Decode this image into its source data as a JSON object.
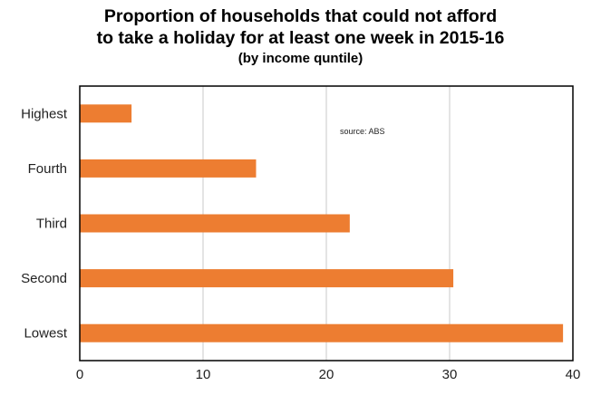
{
  "chart_data": {
    "type": "bar",
    "orientation": "horizontal",
    "title_line1": "Proportion of households that could not afford",
    "title_line2": "to take a holiday for at least one week in 2015-16",
    "subtitle": "(by  income quntile)",
    "annotation": "source:  ABS",
    "categories": [
      "Highest",
      "Fourth",
      "Third",
      "Second",
      "Lowest"
    ],
    "values": [
      4.2,
      14.3,
      21.9,
      30.3,
      39.2
    ],
    "xlim": [
      0,
      40
    ],
    "xticks": [
      0,
      10,
      20,
      30,
      40
    ],
    "grid": true,
    "bar_color": "#ED7D31",
    "grid_color": "#C9C9C9",
    "axis_color": "#000000"
  }
}
